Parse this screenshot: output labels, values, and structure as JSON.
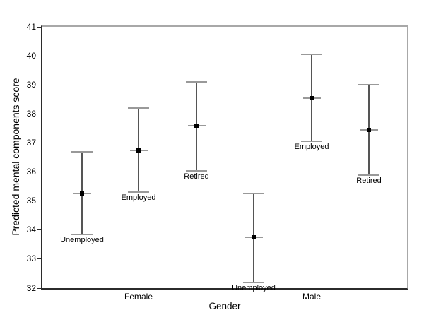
{
  "chart_data": {
    "type": "errorbar",
    "title": "",
    "ylabel": "Predicted mental components score",
    "xlabel": "Gender",
    "ylim": [
      32,
      41
    ],
    "yticks": [
      41,
      40,
      39,
      38,
      37,
      36,
      35,
      34,
      33,
      32
    ],
    "grid": false,
    "legend": "none",
    "groups": [
      {
        "label": "Female"
      },
      {
        "label": "Male"
      }
    ],
    "series": [
      {
        "group": "Female",
        "label": "Unemployed",
        "mean": 35.25,
        "ci_low": 33.85,
        "ci_high": 36.7
      },
      {
        "group": "Female",
        "label": "Employed",
        "mean": 36.75,
        "ci_low": 35.3,
        "ci_high": 38.2
      },
      {
        "group": "Female",
        "label": "Retired",
        "mean": 37.6,
        "ci_low": 36.05,
        "ci_high": 39.1
      },
      {
        "group": "Male",
        "label": "Unemployed",
        "mean": 33.75,
        "ci_low": 32.2,
        "ci_high": 35.25
      },
      {
        "group": "Male",
        "label": "Employed",
        "mean": 38.55,
        "ci_low": 37.05,
        "ci_high": 40.05
      },
      {
        "group": "Male",
        "label": "Retired",
        "mean": 37.45,
        "ci_low": 35.9,
        "ci_high": 39.0
      }
    ],
    "colors": {
      "frame_dark": "#2b2b2b",
      "frame_light": "#a8a8a8",
      "error_line": "#555555",
      "cap": "#999999",
      "marker": "#000000",
      "text": "#000000"
    }
  }
}
